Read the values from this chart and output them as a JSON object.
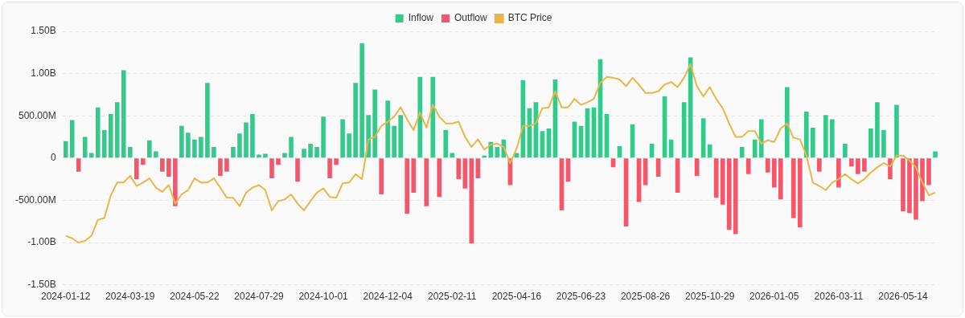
{
  "chart_data": {
    "type": "bar",
    "stacked": true,
    "grid": "y",
    "legend": "top",
    "marker": "none",
    "line_style": "solid",
    "categories": [
      "2024-01-12",
      null,
      null,
      null,
      null,
      null,
      null,
      null,
      null,
      null,
      "2024-03-19",
      null,
      null,
      null,
      null,
      null,
      null,
      null,
      null,
      null,
      "2024-05-22",
      null,
      null,
      null,
      null,
      null,
      null,
      null,
      null,
      null,
      "2024-07-29",
      null,
      null,
      null,
      null,
      null,
      null,
      null,
      null,
      null,
      "2024-10-01",
      null,
      null,
      null,
      null,
      null,
      null,
      null,
      null,
      null,
      "2024-12-04",
      null,
      null,
      null,
      null,
      null,
      null,
      null,
      null,
      null,
      "2025-02-11",
      null,
      null,
      null,
      null,
      null,
      null,
      null,
      null,
      null,
      "2025-04-16",
      null,
      null,
      null,
      null,
      null,
      null,
      null,
      null,
      null,
      "2025-06-23",
      null,
      null,
      null,
      null,
      null,
      null,
      null,
      null,
      null,
      "2025-08-26",
      null,
      null,
      null,
      null,
      null,
      null,
      null,
      null,
      null,
      "2025-10-29",
      null,
      null,
      null,
      null,
      null,
      null,
      null,
      null,
      null,
      "2026-01-05",
      null,
      null,
      null,
      null,
      null,
      null,
      null,
      null,
      null,
      "2026-03-11",
      null,
      null,
      null,
      null,
      null,
      null,
      null,
      null,
      null,
      "2026-05-14",
      null,
      null,
      null,
      null,
      null
    ],
    "ylim": [
      -1500000000.0,
      1500000000.0
    ],
    "yticks": [
      {
        "value": -1500000000.0,
        "label": "-1.50B"
      },
      {
        "value": -1000000000.0,
        "label": "-1.00B"
      },
      {
        "value": -500000000.0,
        "label": "-500.00M"
      },
      0,
      {
        "value": 500000000.0,
        "label": "500.00M"
      },
      {
        "value": 1000000000.0,
        "label": "1.00B"
      },
      {
        "value": 1500000000.0,
        "label": "1.50B"
      }
    ],
    "series": [
      {
        "name": "Inflow",
        "color": "#35c98b",
        "values": [
          200000000.0,
          450000000.0,
          null,
          250000000.0,
          60000000.0,
          600000000.0,
          330000000.0,
          520000000.0,
          660000000.0,
          1040000000.0,
          130000000.0,
          null,
          null,
          210000000.0,
          80000000.0,
          null,
          null,
          null,
          380000000.0,
          300000000.0,
          220000000.0,
          250000000.0,
          890000000.0,
          130000000.0,
          null,
          null,
          130000000.0,
          290000000.0,
          420000000.0,
          520000000.0,
          40000000.0,
          50000000.0,
          null,
          null,
          60000000.0,
          250000000.0,
          null,
          110000000.0,
          170000000.0,
          130000000.0,
          490000000.0,
          null,
          null,
          460000000.0,
          290000000.0,
          890000000.0,
          1360000000.0,
          510000000.0,
          810000000.0,
          null,
          680000000.0,
          380000000.0,
          510000000.0,
          null,
          null,
          960000000.0,
          null,
          960000000.0,
          null,
          330000000.0,
          60000000.0,
          null,
          null,
          null,
          null,
          30000000.0,
          190000000.0,
          130000000.0,
          220000000.0,
          null,
          60000000.0,
          920000000.0,
          590000000.0,
          660000000.0,
          320000000.0,
          350000000.0,
          930000000.0,
          null,
          null,
          430000000.0,
          380000000.0,
          590000000.0,
          600000000.0,
          1170000000.0,
          520000000.0,
          null,
          140000000.0,
          null,
          400000000.0,
          null,
          null,
          170000000.0,
          null,
          730000000.0,
          220000000.0,
          null,
          660000000.0,
          1190000000.0,
          null,
          470000000.0,
          160000000.0,
          null,
          null,
          null,
          null,
          130000000.0,
          null,
          220000000.0,
          460000000.0,
          null,
          null,
          null,
          840000000.0,
          null,
          null,
          550000000.0,
          360000000.0,
          null,
          510000000.0,
          460000000.0,
          null,
          170000000.0,
          null,
          null,
          null,
          350000000.0,
          660000000.0,
          330000000.0,
          null,
          630000000.0,
          null,
          null,
          null,
          null,
          null,
          80000000.0
        ]
      },
      {
        "name": "Outflow",
        "color": "#f2576b",
        "values": [
          null,
          null,
          -160000000.0,
          null,
          null,
          null,
          null,
          null,
          null,
          null,
          null,
          -250000000.0,
          -80000000.0,
          null,
          null,
          -160000000.0,
          -220000000.0,
          -570000000.0,
          null,
          null,
          null,
          null,
          null,
          null,
          -210000000.0,
          -160000000.0,
          null,
          null,
          null,
          null,
          null,
          null,
          -240000000.0,
          -80000000.0,
          null,
          null,
          -280000000.0,
          null,
          null,
          null,
          null,
          -240000000.0,
          -80000000.0,
          null,
          null,
          null,
          null,
          null,
          null,
          -430000000.0,
          null,
          null,
          null,
          -660000000.0,
          -410000000.0,
          null,
          -570000000.0,
          null,
          -460000000.0,
          null,
          null,
          -250000000.0,
          -360000000.0,
          -1010000000.0,
          -240000000.0,
          null,
          null,
          null,
          null,
          -320000000.0,
          null,
          null,
          null,
          null,
          null,
          null,
          null,
          -620000000.0,
          -280000000.0,
          null,
          null,
          null,
          null,
          null,
          null,
          -110000000.0,
          null,
          -810000000.0,
          null,
          -520000000.0,
          -320000000.0,
          null,
          -220000000.0,
          null,
          null,
          -410000000.0,
          null,
          null,
          -210000000.0,
          null,
          null,
          -470000000.0,
          -550000000.0,
          -850000000.0,
          -900000000.0,
          null,
          -190000000.0,
          null,
          null,
          -170000000.0,
          -350000000.0,
          -490000000.0,
          null,
          -710000000.0,
          -820000000.0,
          null,
          null,
          -160000000.0,
          null,
          null,
          -350000000.0,
          null,
          -100000000.0,
          -190000000.0,
          -160000000.0,
          null,
          null,
          null,
          -250000000.0,
          null,
          -630000000.0,
          -650000000.0,
          -730000000.0,
          -510000000.0,
          -320000000.0,
          null
        ]
      },
      {
        "name": "BTC Price",
        "type": "line",
        "color": "#e9b64a",
        "values": [
          -920000000.0,
          -950000000.0,
          -1000000000.0,
          -980000000.0,
          -920000000.0,
          -730000000.0,
          -710000000.0,
          -440000000.0,
          -290000000.0,
          -290000000.0,
          -210000000.0,
          -330000000.0,
          -290000000.0,
          -240000000.0,
          -350000000.0,
          -400000000.0,
          -320000000.0,
          -540000000.0,
          -430000000.0,
          -380000000.0,
          -240000000.0,
          -290000000.0,
          -290000000.0,
          -240000000.0,
          -350000000.0,
          -470000000.0,
          -470000000.0,
          -570000000.0,
          -410000000.0,
          -350000000.0,
          -320000000.0,
          -380000000.0,
          -620000000.0,
          -510000000.0,
          -490000000.0,
          -430000000.0,
          -540000000.0,
          -620000000.0,
          -510000000.0,
          -410000000.0,
          -360000000.0,
          -460000000.0,
          -470000000.0,
          -300000000.0,
          -290000000.0,
          -190000000.0,
          -250000000.0,
          220000000.0,
          250000000.0,
          380000000.0,
          430000000.0,
          490000000.0,
          600000000.0,
          460000000.0,
          330000000.0,
          540000000.0,
          360000000.0,
          630000000.0,
          490000000.0,
          410000000.0,
          410000000.0,
          430000000.0,
          250000000.0,
          130000000.0,
          220000000.0,
          100000000.0,
          160000000.0,
          170000000.0,
          130000000.0,
          -60000000.0,
          110000000.0,
          380000000.0,
          380000000.0,
          410000000.0,
          590000000.0,
          600000000.0,
          790000000.0,
          600000000.0,
          600000000.0,
          700000000.0,
          630000000.0,
          660000000.0,
          700000000.0,
          890000000.0,
          960000000.0,
          950000000.0,
          930000000.0,
          850000000.0,
          950000000.0,
          870000000.0,
          770000000.0,
          770000000.0,
          790000000.0,
          870000000.0,
          900000000.0,
          840000000.0,
          950000000.0,
          1110000000.0,
          850000000.0,
          730000000.0,
          840000000.0,
          700000000.0,
          590000000.0,
          410000000.0,
          250000000.0,
          250000000.0,
          320000000.0,
          320000000.0,
          170000000.0,
          210000000.0,
          190000000.0,
          350000000.0,
          410000000.0,
          240000000.0,
          220000000.0,
          30000000.0,
          -290000000.0,
          -330000000.0,
          -380000000.0,
          -290000000.0,
          -250000000.0,
          -190000000.0,
          -250000000.0,
          -300000000.0,
          -250000000.0,
          -170000000.0,
          -110000000.0,
          -60000000.0,
          -100000000.0,
          30000000.0,
          30000000.0,
          -30000000.0,
          -110000000.0,
          -290000000.0,
          -440000000.0,
          -410000000.0
        ]
      }
    ]
  }
}
